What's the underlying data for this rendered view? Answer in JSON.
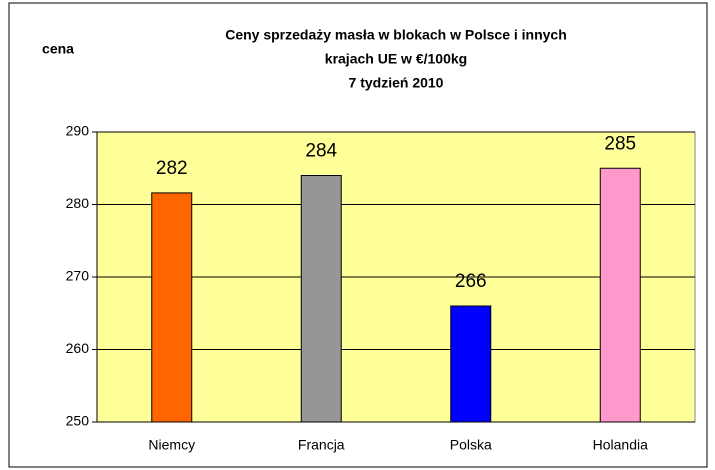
{
  "chart_data": {
    "type": "bar",
    "title": [
      "Ceny sprzedaży masła w blokach w Polsce i  innych",
      "krajach UE w €/100kg",
      "7 tydzień 2010"
    ],
    "y_label": "cena",
    "categories": [
      "Niemcy",
      "Francja",
      "Polska",
      "Holandia"
    ],
    "values": [
      281.6,
      284,
      266,
      285
    ],
    "value_labels": [
      "282",
      "284",
      "266",
      "285"
    ],
    "colors": [
      "#ff6600",
      "#969696",
      "#0000ff",
      "#ff99cc"
    ],
    "ylim": [
      250,
      290
    ],
    "yticks": [
      250,
      260,
      270,
      280,
      290
    ],
    "grid": true
  }
}
